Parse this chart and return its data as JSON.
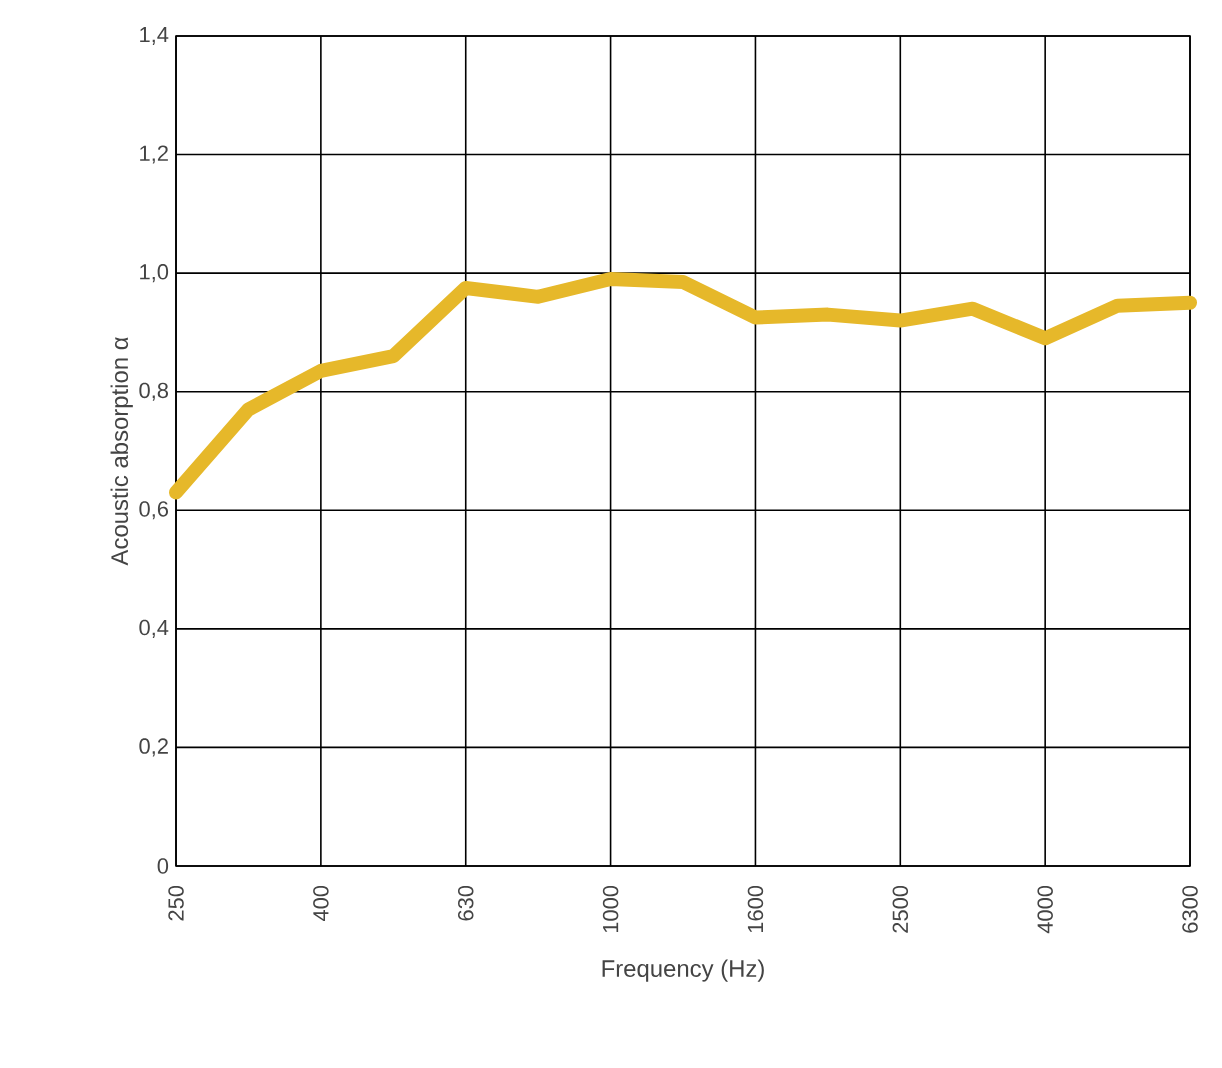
{
  "chart_data": {
    "type": "line",
    "xlabel": "Frequency (Hz)",
    "ylabel": "Acoustic absorption α",
    "categories": [
      "250",
      null,
      "400",
      null,
      "630",
      null,
      "1000",
      null,
      "1600",
      null,
      "2500",
      null,
      "4000",
      null,
      "6300"
    ],
    "series": [
      {
        "color": "#e6b82a",
        "values": [
          0.63,
          0.77,
          0.835,
          0.86,
          0.975,
          0.96,
          0.99,
          0.985,
          0.925,
          0.93,
          0.92,
          0.94,
          0.89,
          0.945,
          0.95
        ]
      }
    ],
    "ylim": [
      0,
      1.4
    ],
    "yticks": [
      0,
      {
        "value": 0.2,
        "label": "0,2"
      },
      {
        "value": 0.4,
        "label": "0,4"
      },
      {
        "value": 0.6,
        "label": "0,6"
      },
      {
        "value": 0.8,
        "label": "0,8"
      },
      {
        "value": 1.0,
        "label": "1,0"
      },
      {
        "value": 1.2,
        "label": "1,2"
      },
      {
        "value": 1.4,
        "label": "1,4"
      }
    ],
    "grid": true,
    "marker": "none",
    "line_style": "solid"
  }
}
